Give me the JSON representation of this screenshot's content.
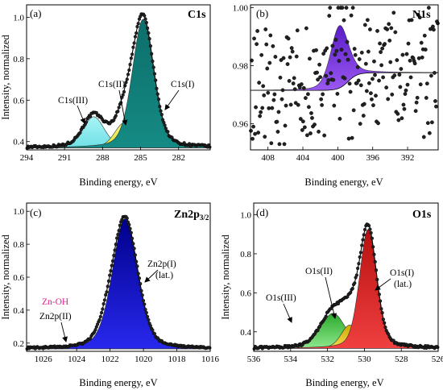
{
  "chart_data": [
    {
      "panel": "(a)",
      "title": "C1s",
      "type": "line",
      "xlabel": "Binding energy, eV",
      "ylabel": "Intensity, normalized",
      "xlim": [
        294,
        279.5
      ],
      "ylim": [
        0.36,
        1.06
      ],
      "xticks": [
        294,
        291,
        288,
        285,
        282
      ],
      "yticks": [
        0.4,
        0.6,
        0.8,
        1.0
      ],
      "baseline": 0.37,
      "components": [
        {
          "name": "C1s(I)",
          "center": 284.8,
          "height": 0.62,
          "width": 1.0,
          "color": "#0e7a76"
        },
        {
          "name": "C1s(II)",
          "center": 286.3,
          "height": 0.12,
          "width": 0.9,
          "color": "#ecec5a"
        },
        {
          "name": "C1s(III)",
          "center": 288.7,
          "height": 0.15,
          "width": 1.0,
          "color": "#7fe8ec"
        }
      ],
      "annotations": [
        "C1s(III)",
        "C1s(II)",
        "C1s(I)"
      ],
      "grid": false
    },
    {
      "panel": "(b)",
      "title": "N1s",
      "type": "scatter",
      "xlabel": "Binding energy, eV",
      "ylabel": "",
      "xlim": [
        410,
        388.5
      ],
      "ylim": [
        0.951,
        1.001
      ],
      "xticks": [
        408,
        404,
        400,
        396,
        392
      ],
      "yticks": [
        0.96,
        0.98,
        1.0
      ],
      "baseline_left": 0.9715,
      "baseline_right": 0.9776,
      "components": [
        {
          "name": "N1s",
          "center": 399.8,
          "height": 0.0215,
          "width": 1.2,
          "color": "#7a2fe0"
        }
      ],
      "grid": false
    },
    {
      "panel": "(c)",
      "title": "Zn2p",
      "title_sub": "3/2",
      "type": "line",
      "xlabel": "Binding energy, eV",
      "ylabel": "Intensity, normalized",
      "xlim": [
        1027,
        1016
      ],
      "ylim": [
        0.15,
        1.05
      ],
      "xticks": [
        1026,
        1024,
        1022,
        1020,
        1018,
        1016
      ],
      "yticks": [
        0.2,
        0.4,
        0.6,
        0.8,
        1.0
      ],
      "baseline": 0.165,
      "components": [
        {
          "name": "Zn2p(I)",
          "center": 1021.1,
          "height": 0.79,
          "width": 0.9,
          "color": "#1010cc"
        },
        {
          "name": "Zn2p(II)",
          "center": 1022.2,
          "height": 0.06,
          "width": 0.7,
          "color": "#e0408a"
        }
      ],
      "annotations": [
        "Zn2p(I)",
        "(lat.)",
        "Zn-OH",
        "Zn2p(II)"
      ],
      "grid": false
    },
    {
      "panel": "(d)",
      "title": "O1s",
      "type": "line",
      "xlabel": "Binding energy, eV",
      "ylabel": "Intensity, normalized",
      "xlim": [
        536,
        526
      ],
      "ylim": [
        0.3,
        1.06
      ],
      "xticks": [
        536,
        534,
        532,
        530,
        528,
        526
      ],
      "yticks": [
        0.4,
        0.6,
        0.8,
        1.0
      ],
      "baseline": 0.315,
      "components": [
        {
          "name": "O1s(I)",
          "center": 529.8,
          "height": 0.61,
          "width": 0.55,
          "color": "#d01c1c"
        },
        {
          "name": "O1s(II)",
          "center": 530.8,
          "height": 0.12,
          "width": 0.55,
          "color": "#e0c020"
        },
        {
          "name": "O1s(III)",
          "center": 531.7,
          "height": 0.18,
          "width": 0.8,
          "color": "#3fc03f"
        }
      ],
      "annotations": [
        "O1s(I)",
        "(lat.)",
        "O1s(II)",
        "O1s(III)"
      ],
      "grid": false
    }
  ]
}
